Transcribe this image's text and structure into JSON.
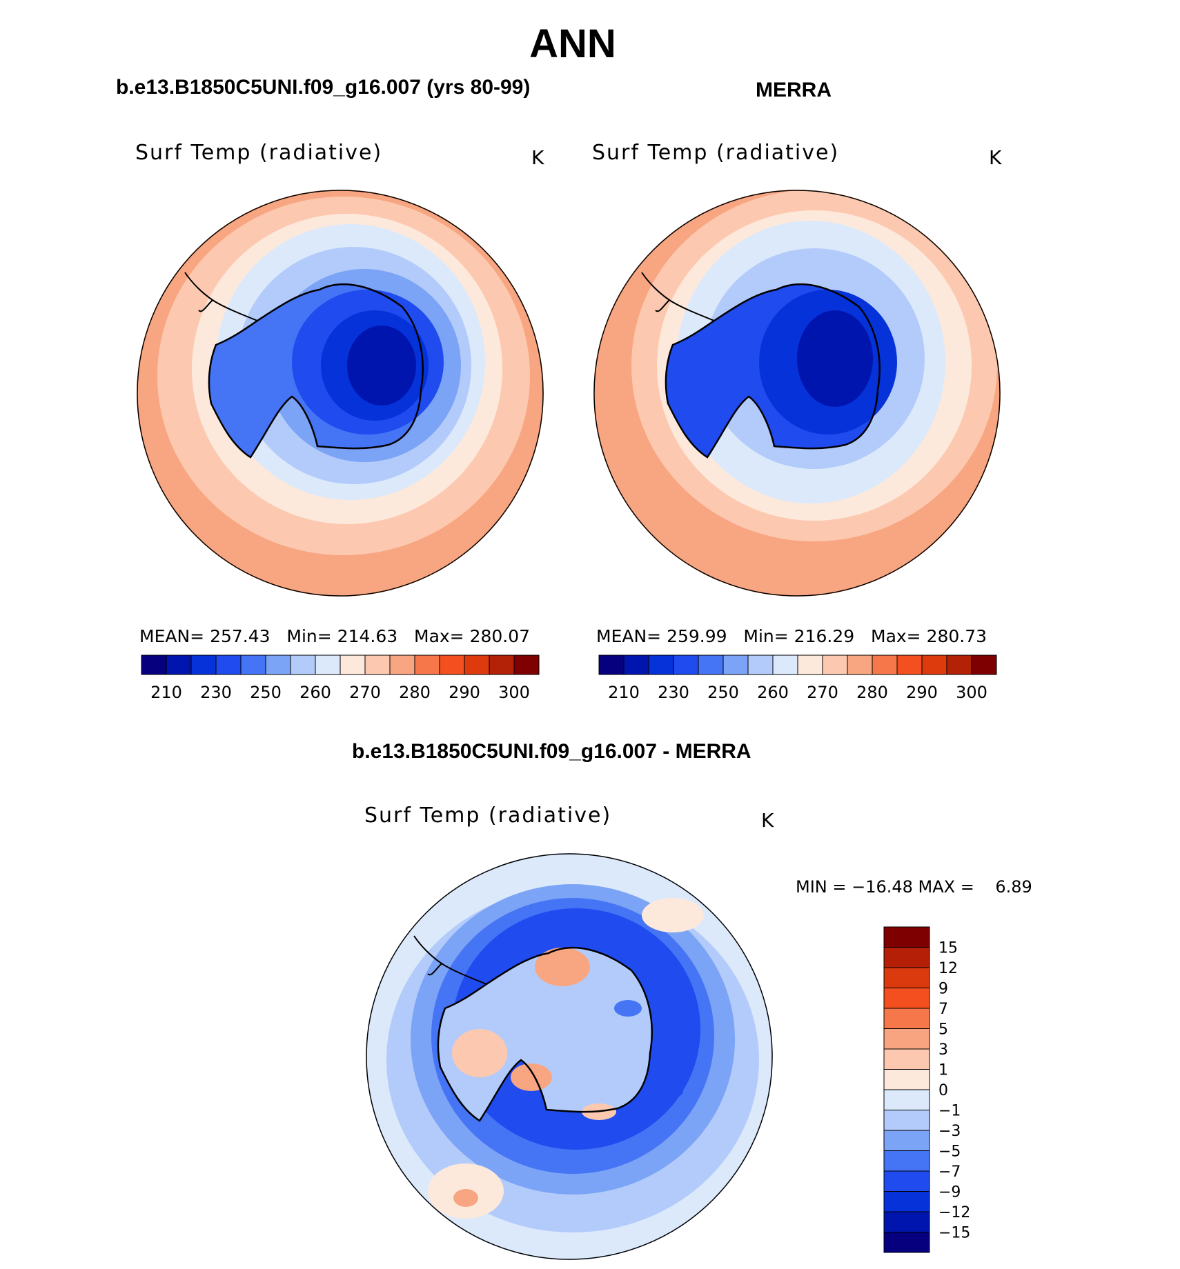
{
  "page_title": "ANN",
  "panels": [
    {
      "case_title": "b.e13.B1850C5UNI.f09_g16.007 (yrs 80-99)",
      "variable": "Surf Temp (radiative)",
      "units": "K",
      "stats": {
        "mean_label": "MEAN=",
        "mean": "257.43",
        "min_label": "Min=",
        "min": "214.63",
        "max_label": "Max=",
        "max": "280.07"
      }
    },
    {
      "case_title": "MERRA",
      "variable": "Surf Temp (radiative)",
      "units": "K",
      "stats": {
        "mean_label": "MEAN=",
        "mean": "259.99",
        "min_label": "Min=",
        "min": "216.29",
        "max_label": "Max=",
        "max": "280.73"
      }
    }
  ],
  "abs_colorbar": {
    "colors": [
      "#06007f",
      "#0015ad",
      "#0532d9",
      "#1f4bef",
      "#4574f4",
      "#7ba3f6",
      "#b3cbfa",
      "#dbe9fb",
      "#fde9dc",
      "#fcc9b0",
      "#f8a681",
      "#f6784a",
      "#f4501f",
      "#dd3a0e",
      "#b32207",
      "#7f0000"
    ],
    "tick_labels": [
      "210",
      "230",
      "250",
      "260",
      "270",
      "280",
      "290",
      "300"
    ]
  },
  "diff_panel": {
    "title": "b.e13.B1850C5UNI.f09_g16.007 - MERRA",
    "variable": "Surf Temp (radiative)",
    "units": "K",
    "minmax_text": "MIN = −16.48 MAX =    6.89"
  },
  "diff_colorbar": {
    "colors": [
      "#7f0000",
      "#b51e07",
      "#da3a0e",
      "#f4501f",
      "#f6784a",
      "#f8a481",
      "#fcc9b0",
      "#fde9dc",
      "#dbe9fb",
      "#b3cbfa",
      "#7ba3f6",
      "#4574f4",
      "#1f4bef",
      "#0532d9",
      "#0015ad",
      "#06007f"
    ],
    "tick_labels": [
      "15",
      "12",
      "9",
      "7",
      "5",
      "3",
      "1",
      "0",
      "−1",
      "−3",
      "−5",
      "−7",
      "−9",
      "−12",
      "−15"
    ]
  },
  "field_palette": {
    "warm_ring": "#f8a681",
    "warm_mid": "#fcc9b0",
    "warm_light": "#fde9dc",
    "cold_light": "#dbe9fb",
    "cold_mid": "#b3cbfa",
    "cold_1": "#7ba3f6",
    "cold_2": "#4574f4",
    "cold_3": "#1f4bef",
    "cold_4": "#0532d9",
    "cold_5": "#0015ad",
    "cold_6": "#06007f"
  }
}
